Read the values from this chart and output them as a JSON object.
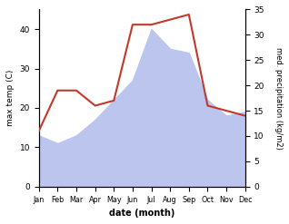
{
  "months": [
    "Jan",
    "Feb",
    "Mar",
    "Apr",
    "May",
    "Jun",
    "Jul",
    "Aug",
    "Sep",
    "Oct",
    "Nov",
    "Dec"
  ],
  "temp": [
    13,
    11,
    13,
    17,
    22,
    27,
    40,
    35,
    34,
    22,
    18,
    19
  ],
  "precip": [
    11,
    19,
    19,
    16,
    17,
    32,
    32,
    33,
    34,
    16,
    15,
    14
  ],
  "temp_color": "#c0392b",
  "precip_fill_color": "#bbc5ee",
  "ylabel_left": "max temp (C)",
  "ylabel_right": "med. precipitation (kg/m2)",
  "xlabel": "date (month)",
  "ylim_left": [
    0,
    45
  ],
  "ylim_right": [
    0,
    35
  ],
  "yticks_left": [
    0,
    10,
    20,
    30,
    40
  ],
  "yticks_right": [
    0,
    5,
    10,
    15,
    20,
    25,
    30,
    35
  ],
  "bg_color": "#ffffff"
}
